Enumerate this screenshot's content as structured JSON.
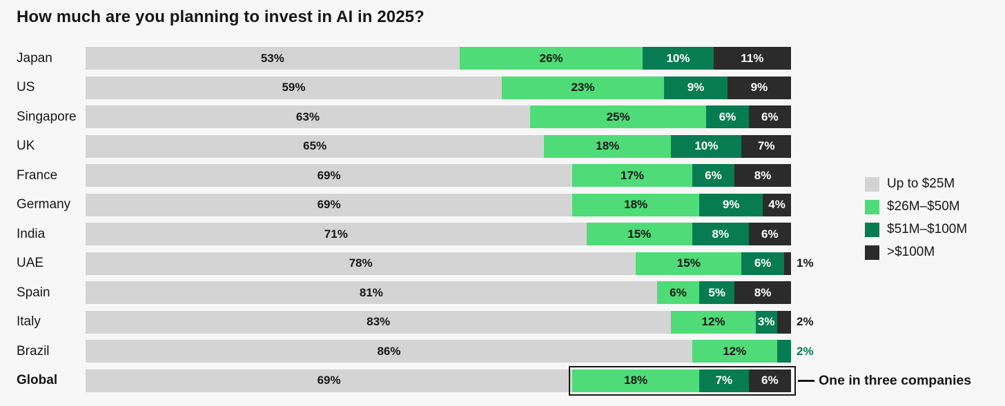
{
  "title": "How much are you planning to invest in AI in 2025?",
  "colors": {
    "background": "#f7f7f7",
    "text": "#161616",
    "segment_text_dark": "#161616",
    "segment_text_light": "#ffffff",
    "annotation_border": "#161616",
    "outside_label_overrides": {
      "51to100": "#077c52"
    }
  },
  "legend": {
    "items": [
      {
        "key": "upto25",
        "label": "Up to $25M"
      },
      {
        "key": "26to50",
        "label": "$26M–$50M"
      },
      {
        "key": "51to100",
        "label": "$51M–$100M"
      },
      {
        "key": "over100",
        "label": ">$100M"
      }
    ]
  },
  "annotation": {
    "category": "Global",
    "box_from_percent": 69,
    "label": "One in three companies"
  },
  "chart_data": {
    "type": "bar",
    "orientation": "horizontal",
    "stacked": true,
    "unit": "%",
    "xlim": [
      0,
      100
    ],
    "grid": false,
    "legend_position": "right",
    "title": "How much are you planning to invest in AI in 2025?",
    "categories": [
      "Japan",
      "US",
      "Singapore",
      "UK",
      "France",
      "Germany",
      "India",
      "UAE",
      "Spain",
      "Italy",
      "Brazil",
      "Global"
    ],
    "bold_categories": [
      "Global"
    ],
    "series": [
      {
        "name": "Up to $25M",
        "key": "upto25",
        "color": "#d4d4d4",
        "text_color": "#161616",
        "values": [
          53,
          59,
          63,
          65,
          69,
          69,
          71,
          78,
          81,
          83,
          86,
          69
        ]
      },
      {
        "name": "$26M–$50M",
        "key": "26to50",
        "color": "#4fdb78",
        "text_color": "#161616",
        "values": [
          26,
          23,
          25,
          18,
          17,
          18,
          15,
          15,
          6,
          12,
          12,
          18
        ]
      },
      {
        "name": "$51M–$100M",
        "key": "51to100",
        "color": "#077c52",
        "text_color": "#ffffff",
        "values": [
          10,
          9,
          6,
          10,
          6,
          9,
          8,
          6,
          5,
          3,
          2,
          7
        ]
      },
      {
        "name": ">$100M",
        "key": "over100",
        "color": "#2b2b2b",
        "text_color": "#ffffff",
        "values": [
          11,
          9,
          6,
          7,
          8,
          4,
          6,
          1,
          8,
          2,
          0,
          6
        ]
      }
    ],
    "outside_label_threshold": 3
  }
}
